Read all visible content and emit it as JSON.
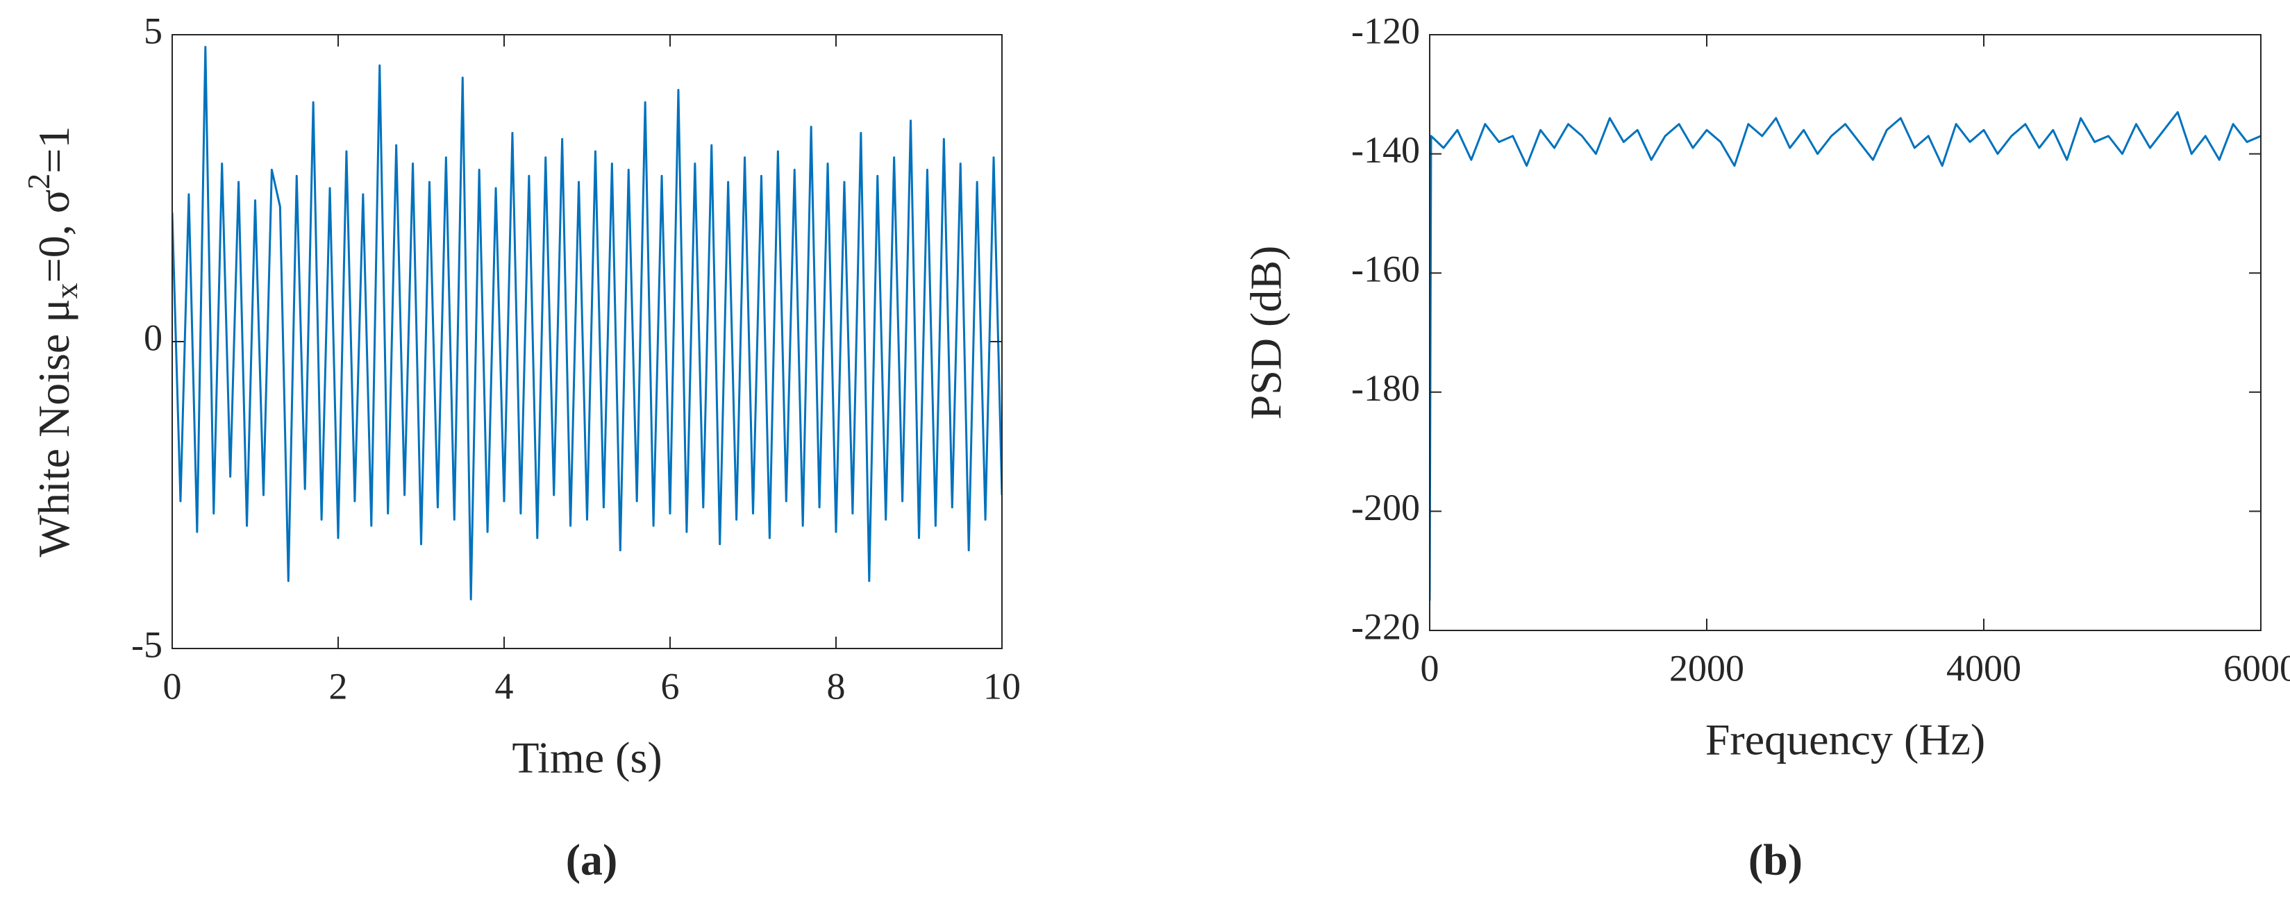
{
  "chart_data": [
    {
      "type": "line",
      "xlabel": "Time (s)",
      "ylabel": [
        "White Noise μ",
        "x",
        "=0, σ",
        "2",
        "=1"
      ],
      "caption": "(a)",
      "x": [
        0,
        0.1,
        0.2,
        0.3,
        0.4,
        0.5,
        0.6,
        0.7,
        0.8,
        0.9,
        1,
        1.1,
        1.2,
        1.3,
        1.4,
        1.5,
        1.6,
        1.7,
        1.8,
        1.9,
        2,
        2.1,
        2.2,
        2.3,
        2.4,
        2.5,
        2.6,
        2.7,
        2.8,
        2.9,
        3,
        3.1,
        3.2,
        3.3,
        3.4,
        3.5,
        3.6,
        3.7,
        3.8,
        3.9,
        4,
        4.1,
        4.2,
        4.3,
        4.4,
        4.5,
        4.6,
        4.7,
        4.8,
        4.9,
        5,
        5.1,
        5.2,
        5.3,
        5.4,
        5.5,
        5.6,
        5.7,
        5.8,
        5.9,
        6,
        6.1,
        6.2,
        6.3,
        6.4,
        6.5,
        6.6,
        6.7,
        6.8,
        6.9,
        7,
        7.1,
        7.2,
        7.3,
        7.4,
        7.5,
        7.6,
        7.7,
        7.8,
        7.9,
        8,
        8.1,
        8.2,
        8.3,
        8.4,
        8.5,
        8.6,
        8.7,
        8.8,
        8.9,
        9,
        9.1,
        9.2,
        9.3,
        9.4,
        9.5,
        9.6,
        9.7,
        9.8,
        9.9,
        10
      ],
      "series": [
        {
          "color": "#0072bd",
          "values": [
            2.1,
            -2.6,
            2.4,
            -3.1,
            4.8,
            -2.8,
            2.9,
            -2.2,
            2.6,
            -3.0,
            2.3,
            -2.5,
            2.8,
            2.2,
            -3.9,
            2.7,
            -2.4,
            3.9,
            -2.9,
            2.5,
            -3.2,
            3.1,
            -2.6,
            2.4,
            -3.0,
            4.5,
            -2.8,
            3.2,
            -2.5,
            2.9,
            -3.3,
            2.6,
            -2.7,
            3.0,
            -2.9,
            4.3,
            -4.2,
            2.8,
            -3.1,
            2.5,
            -2.6,
            3.4,
            -2.8,
            2.7,
            -3.2,
            3.0,
            -2.5,
            3.3,
            -3.0,
            2.6,
            -2.9,
            3.1,
            -2.7,
            2.9,
            -3.4,
            2.8,
            -2.6,
            3.9,
            -3.0,
            2.7,
            -2.8,
            4.1,
            -3.1,
            2.9,
            -2.7,
            3.2,
            -3.3,
            2.6,
            -2.9,
            3.0,
            -2.8,
            2.7,
            -3.2,
            3.1,
            -2.6,
            2.8,
            -3.0,
            3.5,
            -2.7,
            2.9,
            -3.1,
            2.6,
            -2.8,
            3.4,
            -3.9,
            2.7,
            -2.9,
            3.0,
            -2.6,
            3.6,
            -3.2,
            2.8,
            -3.0,
            3.3,
            -2.7,
            2.9,
            -3.4,
            2.6,
            -2.9,
            3.0,
            -2.5
          ]
        }
      ],
      "xlim": [
        0,
        10
      ],
      "ylim": [
        -5,
        5
      ],
      "xticks": [
        0,
        2,
        4,
        6,
        8,
        10
      ],
      "yticks": [
        -5,
        0,
        5
      ]
    },
    {
      "type": "line",
      "xlabel": "Frequency (Hz)",
      "ylabel": "PSD (dB)",
      "caption": "(b)",
      "x": [
        0,
        10,
        100,
        200,
        300,
        400,
        500,
        600,
        700,
        800,
        900,
        1000,
        1100,
        1200,
        1300,
        1400,
        1500,
        1600,
        1700,
        1800,
        1900,
        2000,
        2100,
        2200,
        2300,
        2400,
        2500,
        2600,
        2700,
        2800,
        2900,
        3000,
        3100,
        3200,
        3300,
        3400,
        3500,
        3600,
        3700,
        3800,
        3900,
        4000,
        4100,
        4200,
        4300,
        4400,
        4500,
        4600,
        4700,
        4800,
        4900,
        5000,
        5100,
        5200,
        5300,
        5400,
        5500,
        5600,
        5700,
        5800,
        5900,
        6000
      ],
      "series": [
        {
          "color": "#0072bd",
          "values": [
            -215,
            -137,
            -139,
            -136,
            -141,
            -135,
            -138,
            -137,
            -142,
            -136,
            -139,
            -135,
            -137,
            -140,
            -134,
            -138,
            -136,
            -141,
            -137,
            -135,
            -139,
            -136,
            -138,
            -142,
            -135,
            -137,
            -134,
            -139,
            -136,
            -140,
            -137,
            -135,
            -138,
            -141,
            -136,
            -134,
            -139,
            -137,
            -142,
            -135,
            -138,
            -136,
            -140,
            -137,
            -135,
            -139,
            -136,
            -141,
            -134,
            -138,
            -137,
            -140,
            -135,
            -139,
            -136,
            -133,
            -140,
            -137,
            -141,
            -135,
            -138,
            -137
          ]
        }
      ],
      "xlim": [
        0,
        6000
      ],
      "ylim": [
        -220,
        -120
      ],
      "xticks": [
        0,
        2000,
        4000,
        6000
      ],
      "yticks": [
        -220,
        -200,
        -180,
        -160,
        -140,
        -120
      ]
    }
  ]
}
